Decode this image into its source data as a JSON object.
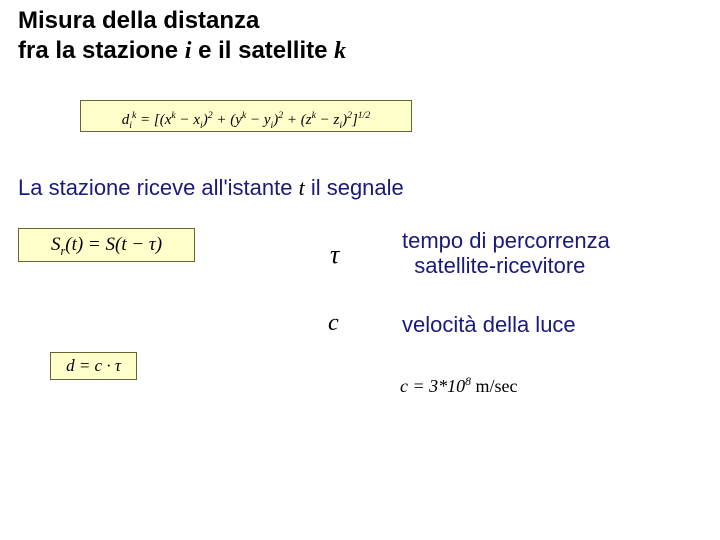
{
  "heading": {
    "line1_pre": "Misura della distanza",
    "line2_pre": "fra la stazione ",
    "var_i": "i",
    "line2_mid": "  e il satellite  ",
    "var_k": "k"
  },
  "formula_distance": "dᵢᵏ = [(xᵏ − xᵢ)² + (yᵏ − yᵢ)² + (zᵏ − zᵢ)²]¹ᐟ²",
  "reception": {
    "pre": "La stazione riceve all'istante  ",
    "var_t": "t",
    "post": "  il segnale"
  },
  "formula_sr": "Sᵣ(t) = S(t − τ)",
  "tau_symbol": "τ",
  "def_tau_line1": "tempo di percorrenza",
  "def_tau_line2": "satellite-ricevitore",
  "c_symbol": "c",
  "def_c": "velocità della luce",
  "formula_d": "d = c · τ",
  "formula_c": {
    "lhs": "c = 3*10",
    "exp": "8",
    "unit": " m/sec"
  },
  "colors": {
    "box_bg": "#ffffcc",
    "box_border": "#666633",
    "text_blue": "#1a1a7a",
    "text_black": "#000000",
    "background": "#ffffff"
  },
  "typography": {
    "heading_size_pt": 18,
    "body_size_pt": 16,
    "formula_font": "Times New Roman",
    "ui_font": "Arial"
  }
}
